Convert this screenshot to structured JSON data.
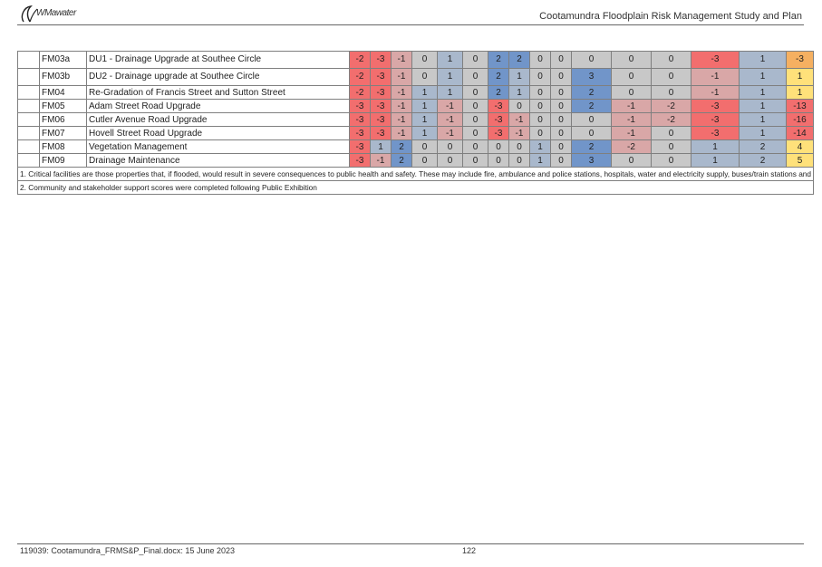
{
  "header": {
    "logo_text": "WMawater",
    "title": "Cootamundra Floodplain Risk Management Study and Plan"
  },
  "colors": {
    "strong_red": "#f26e6e",
    "light_red": "#d9a7a7",
    "grey": "#c8c8c8",
    "blue_grey": "#a9b8cc",
    "blue": "#7195c9",
    "yellow": "#ffe17a",
    "orange": "#f5b061",
    "red_total": "#f26e6e"
  },
  "rows": [
    {
      "id": "FM03a",
      "desc": "DU1 - Drainage Upgrade at Southee Circle",
      "scores": [
        "-2",
        "-3",
        "-1",
        "0",
        "1",
        "0",
        "2",
        "2",
        "0",
        "0",
        "0",
        "0",
        "0",
        "-3",
        "1"
      ],
      "classes": [
        "r",
        "r",
        "lr",
        "g",
        "bg",
        "g",
        "b",
        "b",
        "g",
        "g",
        "g",
        "g",
        "g",
        "r",
        "bg"
      ],
      "total": "-3",
      "total_class": "o"
    },
    {
      "id": "FM03b",
      "desc": "DU2 - Drainage upgrade at Southee Circle",
      "scores": [
        "-2",
        "-3",
        "-1",
        "0",
        "1",
        "0",
        "2",
        "1",
        "0",
        "0",
        "3",
        "0",
        "0",
        "-1",
        "1"
      ],
      "classes": [
        "r",
        "r",
        "lr",
        "g",
        "bg",
        "g",
        "b",
        "bg",
        "g",
        "g",
        "b",
        "g",
        "g",
        "lr",
        "bg"
      ],
      "total": "1",
      "total_class": "y"
    },
    {
      "id": "FM04",
      "desc": "Re-Gradation of Francis Street and Sutton Street",
      "scores": [
        "-2",
        "-3",
        "-1",
        "1",
        "1",
        "0",
        "2",
        "1",
        "0",
        "0",
        "2",
        "0",
        "0",
        "-1",
        "1"
      ],
      "classes": [
        "r",
        "r",
        "lr",
        "bg",
        "bg",
        "g",
        "b",
        "bg",
        "g",
        "g",
        "b",
        "g",
        "g",
        "lr",
        "bg"
      ],
      "total": "1",
      "total_class": "y"
    },
    {
      "id": "FM05",
      "desc": "Adam Street Road Upgrade",
      "scores": [
        "-3",
        "-3",
        "-1",
        "1",
        "-1",
        "0",
        "-3",
        "0",
        "0",
        "0",
        "2",
        "-1",
        "-2",
        "-3",
        "1"
      ],
      "classes": [
        "r",
        "r",
        "lr",
        "bg",
        "lr",
        "g",
        "r",
        "g",
        "g",
        "g",
        "b",
        "lr",
        "lr",
        "r",
        "bg"
      ],
      "total": "-13",
      "total_class": "rt"
    },
    {
      "id": "FM06",
      "desc": "Cutler Avenue Road Upgrade",
      "scores": [
        "-3",
        "-3",
        "-1",
        "1",
        "-1",
        "0",
        "-3",
        "-1",
        "0",
        "0",
        "0",
        "-1",
        "-2",
        "-3",
        "1"
      ],
      "classes": [
        "r",
        "r",
        "lr",
        "bg",
        "lr",
        "g",
        "r",
        "lr",
        "g",
        "g",
        "g",
        "lr",
        "lr",
        "r",
        "bg"
      ],
      "total": "-16",
      "total_class": "rt"
    },
    {
      "id": "FM07",
      "desc": "Hovell Street Road Upgrade",
      "scores": [
        "-3",
        "-3",
        "-1",
        "1",
        "-1",
        "0",
        "-3",
        "-1",
        "0",
        "0",
        "0",
        "-1",
        "0",
        "-3",
        "1"
      ],
      "classes": [
        "r",
        "r",
        "lr",
        "bg",
        "lr",
        "g",
        "r",
        "lr",
        "g",
        "g",
        "g",
        "lr",
        "g",
        "r",
        "bg"
      ],
      "total": "-14",
      "total_class": "rt"
    },
    {
      "id": "FM08",
      "desc": "Vegetation Management",
      "scores": [
        "-3",
        "1",
        "2",
        "0",
        "0",
        "0",
        "0",
        "0",
        "1",
        "0",
        "2",
        "-2",
        "0",
        "1",
        "2"
      ],
      "classes": [
        "r",
        "bg",
        "b",
        "g",
        "g",
        "g",
        "g",
        "g",
        "bg",
        "g",
        "b",
        "lr",
        "g",
        "bg",
        "bg"
      ],
      "total": "4",
      "total_class": "y"
    },
    {
      "id": "FM09",
      "desc": "Drainage Maintenance",
      "scores": [
        "-3",
        "-1",
        "2",
        "0",
        "0",
        "0",
        "0",
        "0",
        "1",
        "0",
        "3",
        "0",
        "0",
        "1",
        "2"
      ],
      "classes": [
        "r",
        "lr",
        "b",
        "g",
        "g",
        "g",
        "g",
        "g",
        "bg",
        "g",
        "b",
        "g",
        "g",
        "bg",
        "bg"
      ],
      "total": "5",
      "total_class": "y"
    }
  ],
  "notes": {
    "note1": "1. Critical facilities are those properties that, if flooded, would result in severe consequences to public health and safety. These may include fire, ambulance and police stations, hospitals, water and electricity supply, buses/train stations and chemical plants. Vulnerable facilities refer to those properties with vulnerable occupants, such as nursing homes or schools.",
    "note2": "2.  Community and stakeholder support scores were completed following Public Exhibition"
  },
  "footer": {
    "doc_ref": "119039: Cootamundra_FRMS&P_Final.docx: 15 June 2023",
    "page_number": "122"
  }
}
